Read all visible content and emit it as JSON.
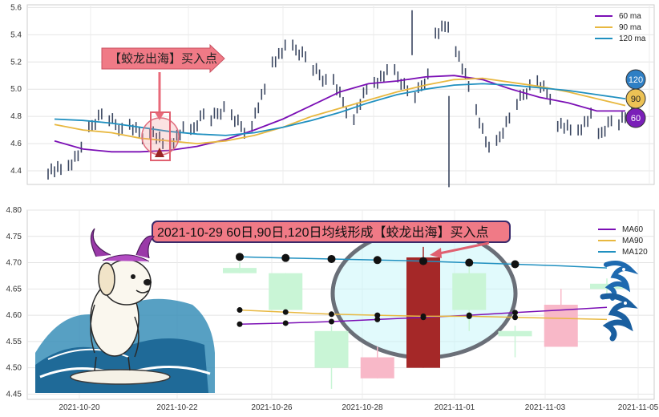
{
  "chart_data": [
    {
      "type": "candlestick",
      "panel": "top",
      "ylim": [
        4.3,
        5.62
      ],
      "y_ticks": [
        "4.4",
        "4.6",
        "4.8",
        "5.0",
        "5.2",
        "5.4",
        "5.6"
      ],
      "x_ticks": [
        "2021-10-20",
        "2021-10-22",
        "2021-10-26",
        "2021-10-28",
        "2021-11-01",
        "2021-11-03",
        "2021-11-05"
      ],
      "grid": true,
      "legend_position": "top-right",
      "series": [
        {
          "name": "60 ma",
          "color": "#7b0fb5",
          "values": [
            4.62,
            4.56,
            4.54,
            4.54,
            4.55,
            4.58,
            4.63,
            4.7,
            4.78,
            4.88,
            4.98,
            5.04,
            5.06,
            5.09,
            5.1,
            5.07,
            5.0,
            4.94,
            4.9,
            4.84,
            4.84
          ]
        },
        {
          "name": "90 ma",
          "color": "#e8b840",
          "values": [
            4.74,
            4.7,
            4.68,
            4.64,
            4.62,
            4.6,
            4.62,
            4.66,
            4.72,
            4.8,
            4.86,
            4.92,
            4.98,
            5.03,
            5.07,
            5.08,
            5.05,
            5.02,
            4.98,
            4.93,
            4.88
          ]
        },
        {
          "name": "120 ma",
          "color": "#2090c0",
          "values": [
            4.78,
            4.77,
            4.75,
            4.72,
            4.69,
            4.67,
            4.66,
            4.68,
            4.72,
            4.77,
            4.83,
            4.9,
            4.96,
            5.0,
            5.03,
            5.04,
            5.03,
            5.01,
            4.99,
            4.96,
            4.93
          ]
        }
      ],
      "candles": [
        [
          4.4,
          4.41
        ],
        [
          4.44,
          4.55
        ],
        [
          4.7,
          4.83
        ],
        [
          4.78,
          4.7
        ],
        [
          4.73,
          4.66
        ],
        [
          4.7,
          4.6
        ],
        [
          4.6,
          4.7
        ],
        [
          4.68,
          4.83
        ],
        [
          4.78,
          4.86
        ],
        [
          4.8,
          4.7
        ],
        [
          4.75,
          5.0
        ],
        [
          5.2,
          5.3
        ],
        [
          5.3,
          5.25
        ],
        [
          5.15,
          5.06
        ],
        [
          5.06,
          4.85
        ],
        [
          4.8,
          5.0
        ],
        [
          5.05,
          5.12
        ],
        [
          5.12,
          5.0
        ],
        [
          4.95,
          5.1
        ],
        [
          5.4,
          5.48
        ],
        [
          5.3,
          5.02
        ],
        [
          4.85,
          4.55
        ],
        [
          4.6,
          4.8
        ],
        [
          4.9,
          5.02
        ],
        [
          5.05,
          4.95
        ],
        [
          4.75,
          4.7
        ],
        [
          4.7,
          4.8
        ],
        [
          4.65,
          4.78
        ],
        [
          4.75,
          4.83
        ]
      ],
      "badges": [
        {
          "label": "120",
          "color": "#2f7fc4"
        },
        {
          "label": "90",
          "color": "#ecc255"
        },
        {
          "label": "60",
          "color": "#7a1fb8"
        }
      ],
      "annotation": "【蛟龙出海】买入点"
    },
    {
      "type": "candlestick",
      "panel": "bottom",
      "ylim": [
        4.44,
        4.8
      ],
      "y_ticks": [
        "4.45",
        "4.50",
        "4.55",
        "4.60",
        "4.65",
        "4.70",
        "4.75",
        "4.80"
      ],
      "x_ticks": [
        "2021-10-20",
        "2021-10-22",
        "2021-10-26",
        "2021-10-28",
        "2021-11-01",
        "2021-11-03",
        "2021-11-05"
      ],
      "legend_position": "top-right",
      "series": [
        {
          "name": "MA60",
          "color": "#7b0fb5",
          "values": [
            4.583,
            4.585,
            4.588,
            4.592,
            4.596,
            4.6,
            4.605,
            4.61,
            4.615
          ]
        },
        {
          "name": "MA90",
          "color": "#e8b840",
          "values": [
            4.61,
            4.606,
            4.602,
            4.6,
            4.598,
            4.598,
            4.596,
            4.594,
            4.592
          ]
        },
        {
          "name": "MA120",
          "color": "#2090c0",
          "values": [
            4.711,
            4.709,
            4.707,
            4.705,
            4.703,
            4.7,
            4.697,
            4.694,
            4.69
          ]
        }
      ],
      "candles": [
        {
          "open": 4.68,
          "close": 4.69,
          "high": 4.7,
          "low": 4.68,
          "color": "#c9f5d6"
        },
        {
          "open": 4.68,
          "close": 4.61,
          "high": 4.68,
          "low": 4.6,
          "color": "#c9f5d6"
        },
        {
          "open": 4.57,
          "close": 4.5,
          "high": 4.58,
          "low": 4.46,
          "color": "#c9f5d6"
        },
        {
          "open": 4.48,
          "close": 4.52,
          "high": 4.54,
          "low": 4.48,
          "color": "#f8b8c8"
        },
        {
          "open": 4.5,
          "close": 4.71,
          "high": 4.73,
          "low": 4.5,
          "color": "#a52828"
        },
        {
          "open": 4.68,
          "close": 4.61,
          "high": 4.7,
          "low": 4.57,
          "color": "#c9f5d6"
        },
        {
          "open": 4.57,
          "close": 4.56,
          "high": 4.58,
          "low": 4.52,
          "color": "#c9f5d6"
        },
        {
          "open": 4.54,
          "close": 4.62,
          "high": 4.65,
          "low": 4.54,
          "color": "#f8b8c8"
        },
        {
          "open": 4.65,
          "close": 4.66,
          "high": 4.67,
          "low": 4.63,
          "color": "#c9f5d6"
        }
      ],
      "annotation": "2021-10-29 60日,90日,120日均线形成【蛟龙出海】买入点"
    }
  ]
}
